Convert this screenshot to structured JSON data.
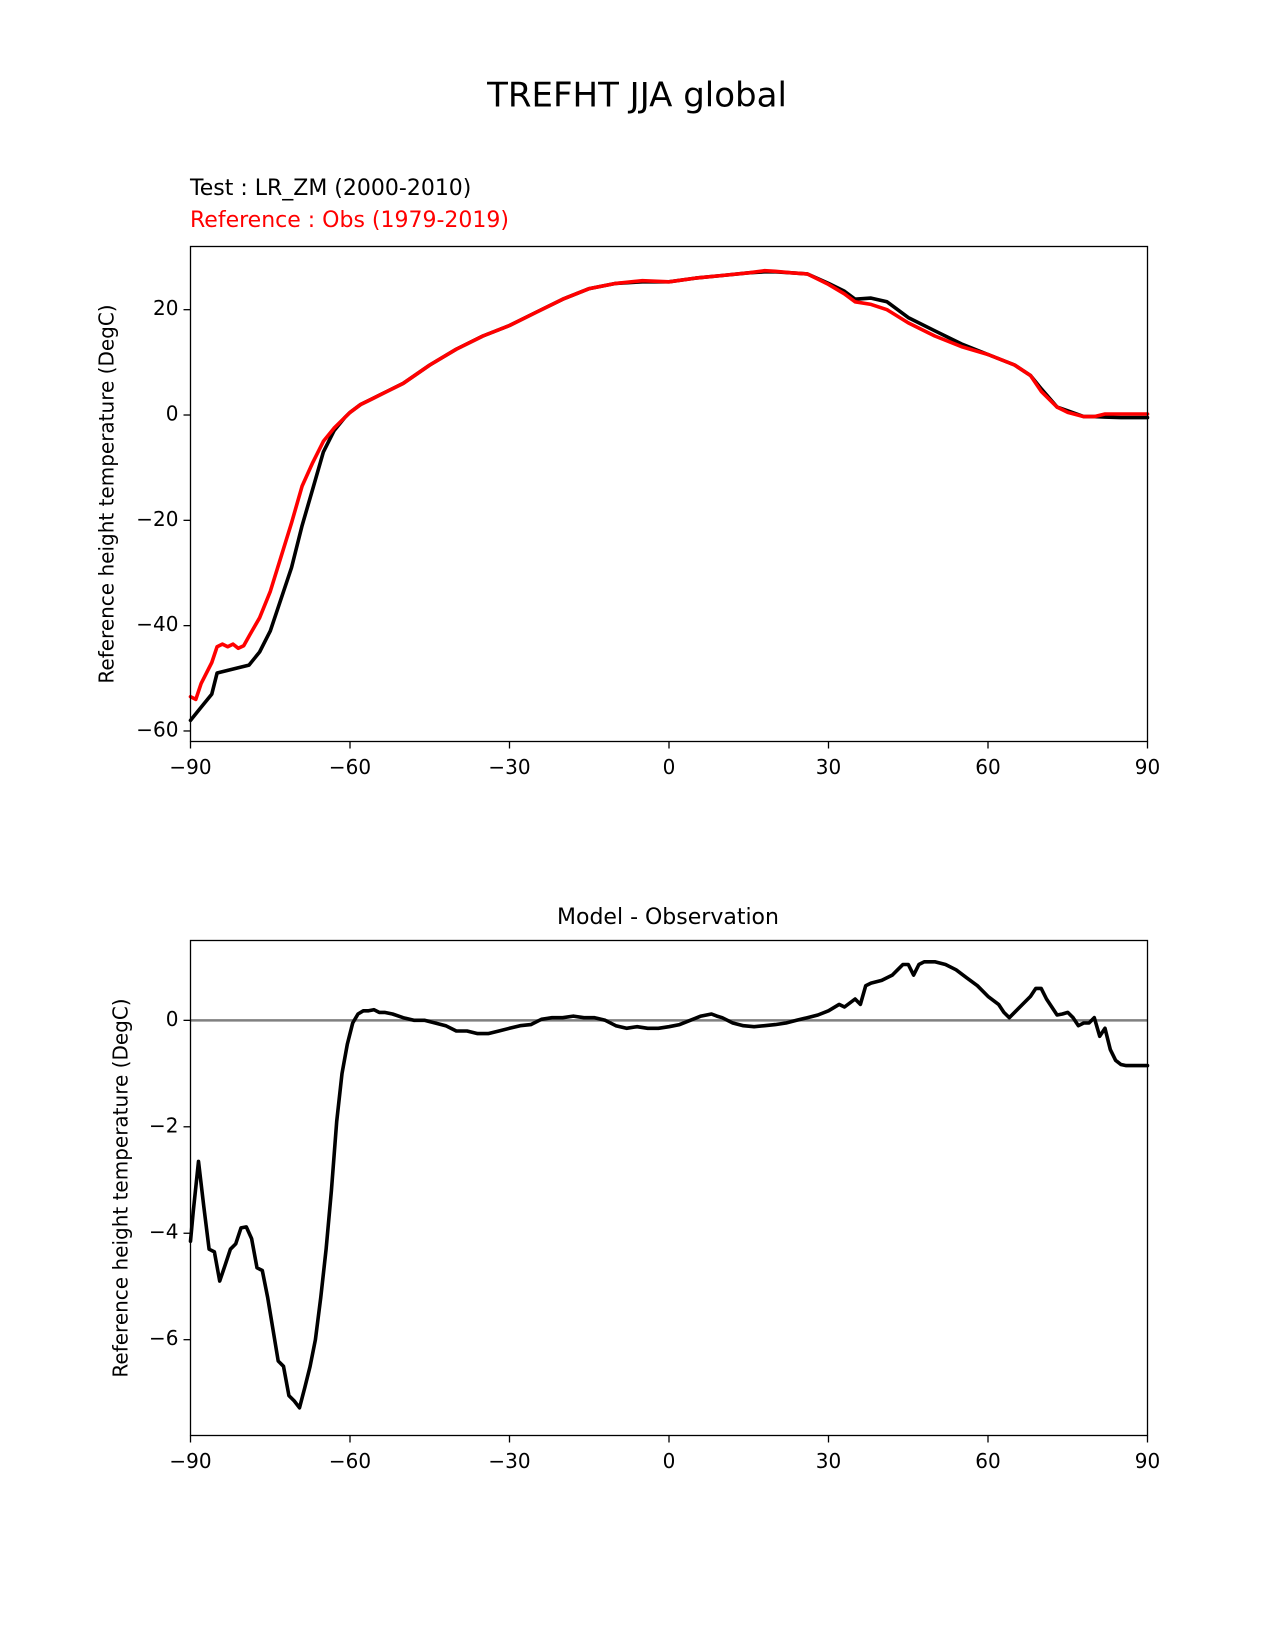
{
  "figure": {
    "suptitle": "TREFHT JJA global"
  },
  "colors": {
    "test": "#000000",
    "reference": "#ff0000",
    "zero_line": "#808080"
  },
  "chart_data": [
    {
      "type": "line",
      "test_label": "Test : LR_ZM (2000-2010)",
      "reference_label": "Reference : Obs (1979-2019)",
      "xlabel": "",
      "ylabel": "Reference height temperature (DegC)",
      "xlim": [
        -90,
        90
      ],
      "ylim": [
        -62,
        32
      ],
      "xticks": [
        -90,
        -60,
        -30,
        0,
        30,
        60,
        90
      ],
      "yticks": [
        -60,
        -40,
        -20,
        0,
        20
      ],
      "grid": false,
      "series": [
        {
          "name": "Test : LR_ZM (2000-2010)",
          "color": "#000000",
          "x": [
            -90,
            -88,
            -86,
            -85,
            -83,
            -81,
            -79,
            -77,
            -75,
            -73,
            -71,
            -69,
            -67,
            -65,
            -63,
            -61,
            -60,
            -58,
            -56,
            -53,
            -50,
            -45,
            -40,
            -35,
            -30,
            -25,
            -20,
            -15,
            -10,
            -5,
            0,
            5,
            10,
            15,
            18,
            20,
            23,
            26,
            30,
            33,
            35,
            38,
            41,
            45,
            50,
            55,
            60,
            65,
            68,
            70,
            73,
            75,
            78,
            80,
            82,
            85,
            90
          ],
          "y": [
            -58,
            -55.5,
            -53,
            -49,
            -48.5,
            -48,
            -47.5,
            -45,
            -41,
            -35,
            -29,
            -21,
            -14,
            -7,
            -3,
            -0.5,
            0.5,
            2,
            3,
            4.5,
            6,
            9.5,
            12.5,
            15,
            17,
            19.5,
            22,
            24,
            25,
            25.3,
            25.3,
            26,
            26.5,
            27,
            27.2,
            27.2,
            27,
            26.8,
            25,
            23.5,
            22,
            22.2,
            21.5,
            18.5,
            16,
            13.5,
            11.5,
            9.5,
            7.5,
            5,
            1.5,
            0.8,
            -0.3,
            -0.3,
            -0.4,
            -0.5,
            -0.5
          ]
        },
        {
          "name": "Reference : Obs (1979-2019)",
          "color": "#ff0000",
          "x": [
            -90,
            -89,
            -88,
            -86,
            -85,
            -84,
            -83,
            -82,
            -81,
            -80,
            -79,
            -77,
            -75,
            -73,
            -71,
            -69,
            -67,
            -65,
            -63,
            -61,
            -60,
            -58,
            -56,
            -53,
            -50,
            -45,
            -40,
            -35,
            -30,
            -25,
            -20,
            -15,
            -10,
            -5,
            0,
            5,
            10,
            15,
            18,
            20,
            23,
            26,
            30,
            33,
            35,
            38,
            41,
            45,
            50,
            55,
            60,
            65,
            68,
            70,
            73,
            75,
            78,
            80,
            82,
            85,
            90
          ],
          "y": [
            -53.5,
            -54,
            -51,
            -47,
            -44,
            -43.5,
            -44,
            -43.5,
            -44.3,
            -43.8,
            -42,
            -38.5,
            -33.5,
            -27,
            -20.5,
            -13.5,
            -9,
            -5,
            -2.5,
            -0.5,
            0.5,
            2,
            3,
            4.5,
            6,
            9.5,
            12.5,
            15,
            17,
            19.5,
            22,
            24,
            25,
            25.5,
            25.3,
            26,
            26.5,
            27,
            27.4,
            27.3,
            27,
            26.8,
            24.8,
            23,
            21.5,
            21,
            20,
            17.5,
            15,
            13,
            11.5,
            9.5,
            7.5,
            4.5,
            1.5,
            0.5,
            -0.3,
            -0.3,
            0.2,
            0.2,
            0.2
          ]
        }
      ]
    },
    {
      "type": "line",
      "title": "Model - Observation",
      "xlabel": "",
      "ylabel": "Reference height temperature (DegC)",
      "xlim": [
        -90,
        90
      ],
      "ylim": [
        -7.8,
        1.5
      ],
      "xticks": [
        -90,
        -60,
        -30,
        0,
        30,
        60,
        90
      ],
      "yticks": [
        -6,
        -4,
        -2,
        0
      ],
      "grid": false,
      "zero_line": 0,
      "series": [
        {
          "name": "Model - Observation",
          "color": "#000000",
          "x": [
            -90,
            -89.5,
            -88.5,
            -87.5,
            -86.5,
            -85.5,
            -84.5,
            -83.5,
            -82.5,
            -81.5,
            -80.5,
            -79.5,
            -78.5,
            -77.5,
            -76.5,
            -75.5,
            -74.5,
            -73.5,
            -72.5,
            -71.5,
            -70.5,
            -69.5,
            -68.5,
            -67.5,
            -66.5,
            -65.5,
            -64.5,
            -63.5,
            -62.5,
            -61.5,
            -60.5,
            -59.5,
            -58.5,
            -57.5,
            -56.5,
            -55.5,
            -54.5,
            -53.5,
            -52,
            -50,
            -48,
            -46,
            -44,
            -42,
            -40,
            -38,
            -36,
            -34,
            -32,
            -30,
            -28,
            -26,
            -24,
            -22,
            -20,
            -18,
            -16,
            -14,
            -12,
            -10,
            -8,
            -6,
            -4,
            -2,
            0,
            2,
            4,
            6,
            8,
            9,
            10,
            12,
            14,
            16,
            18,
            20,
            22,
            24,
            26,
            28,
            30,
            32,
            33,
            35,
            36,
            37,
            38,
            40,
            42,
            43,
            44,
            45,
            46,
            47,
            48,
            50,
            52,
            54,
            56,
            58,
            60,
            62,
            63,
            64,
            66,
            68,
            69,
            70,
            71,
            72,
            73,
            74,
            75,
            76,
            77,
            78,
            79,
            80,
            81,
            82,
            83,
            84,
            85,
            86,
            88,
            90
          ],
          "y": [
            -4.15,
            -3.6,
            -2.65,
            -3.5,
            -4.3,
            -4.35,
            -4.9,
            -4.6,
            -4.3,
            -4.2,
            -3.9,
            -3.88,
            -4.1,
            -4.65,
            -4.7,
            -5.2,
            -5.8,
            -6.4,
            -6.5,
            -7.05,
            -7.15,
            -7.28,
            -6.9,
            -6.5,
            -6.0,
            -5.2,
            -4.3,
            -3.2,
            -1.9,
            -1.0,
            -0.45,
            -0.05,
            0.12,
            0.18,
            0.18,
            0.2,
            0.15,
            0.15,
            0.12,
            0.05,
            0.0,
            0.0,
            -0.05,
            -0.1,
            -0.2,
            -0.2,
            -0.25,
            -0.25,
            -0.2,
            -0.15,
            -0.1,
            -0.08,
            0.02,
            0.05,
            0.05,
            0.08,
            0.05,
            0.05,
            0.0,
            -0.1,
            -0.15,
            -0.12,
            -0.15,
            -0.15,
            -0.12,
            -0.08,
            0.0,
            0.08,
            0.12,
            0.08,
            0.05,
            -0.05,
            -0.1,
            -0.12,
            -0.1,
            -0.08,
            -0.05,
            0.0,
            0.05,
            0.1,
            0.18,
            0.3,
            0.25,
            0.4,
            0.3,
            0.65,
            0.7,
            0.75,
            0.85,
            0.95,
            1.05,
            1.05,
            0.85,
            1.05,
            1.1,
            1.1,
            1.05,
            0.95,
            0.8,
            0.65,
            0.45,
            0.3,
            0.15,
            0.05,
            0.25,
            0.45,
            0.6,
            0.6,
            0.4,
            0.25,
            0.1,
            0.12,
            0.15,
            0.05,
            -0.1,
            -0.05,
            -0.05,
            0.05,
            -0.3,
            -0.15,
            -0.55,
            -0.75,
            -0.83,
            -0.85,
            -0.85,
            -0.85
          ]
        }
      ]
    }
  ]
}
